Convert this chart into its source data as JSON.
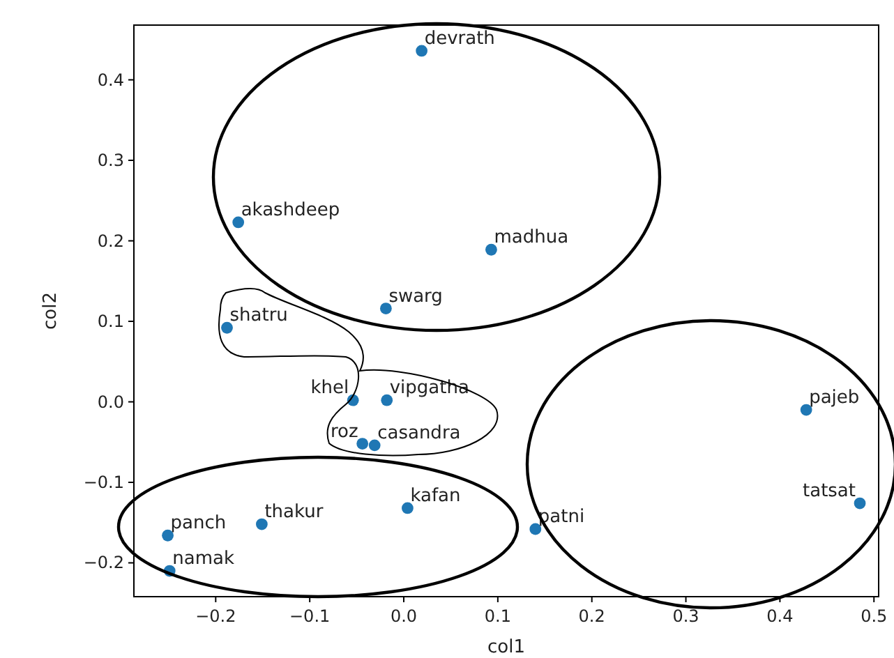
{
  "chart_data": {
    "type": "scatter",
    "xlabel": "col1",
    "ylabel": "col2",
    "xlim": [
      -0.287,
      0.505
    ],
    "ylim": [
      -0.242,
      0.468
    ],
    "xticks": [
      {
        "value": -0.2,
        "label": "−0.2"
      },
      {
        "value": -0.1,
        "label": "−0.1"
      },
      {
        "value": 0,
        "label": "0.0"
      },
      0.1,
      0.2,
      0.3,
      0.4,
      0.5
    ],
    "yticks": [
      {
        "value": -0.2,
        "label": "−0.2"
      },
      {
        "value": -0.1,
        "label": "−0.1"
      },
      {
        "value": 0,
        "label": "0.0"
      },
      0.1,
      0.2,
      0.3,
      0.4
    ],
    "marker": "circle",
    "grid": false,
    "series": [
      {
        "color": "#1f77b4",
        "x": [
          0.019,
          -0.176,
          0.093,
          -0.019,
          -0.188,
          -0.054,
          -0.018,
          -0.044,
          -0.031,
          0.428,
          0.485,
          0.004,
          0.14,
          -0.151,
          -0.251,
          -0.249
        ],
        "values": [
          0.436,
          0.223,
          0.189,
          0.116,
          0.092,
          0.002,
          0.002,
          -0.052,
          -0.054,
          -0.01,
          -0.126,
          -0.132,
          -0.158,
          -0.152,
          -0.166,
          -0.21
        ]
      }
    ],
    "annotations": [
      {
        "text": "devrath",
        "x": 0.019,
        "y": 0.436
      },
      {
        "text": "akashdeep",
        "x": -0.176,
        "y": 0.223
      },
      {
        "text": "madhua",
        "x": 0.093,
        "y": 0.189
      },
      {
        "text": "swarg",
        "x": -0.019,
        "y": 0.116
      },
      {
        "text": "shatru",
        "x": -0.188,
        "y": 0.092
      },
      {
        "text": "khel",
        "x": -0.054,
        "y": 0.002
      },
      {
        "text": "vipgatha",
        "x": -0.018,
        "y": 0.002
      },
      {
        "text": "roz",
        "x": -0.044,
        "y": -0.052
      },
      {
        "text": "casandra",
        "x": -0.031,
        "y": -0.054
      },
      {
        "text": "pajeb",
        "x": 0.428,
        "y": -0.01
      },
      {
        "text": "tatsat",
        "x": 0.485,
        "y": -0.126
      },
      {
        "text": "kafan",
        "x": 0.004,
        "y": -0.132
      },
      {
        "text": "patni",
        "x": 0.14,
        "y": -0.158
      },
      {
        "text": "thakur",
        "x": -0.151,
        "y": -0.152
      },
      {
        "text": "panch",
        "x": -0.251,
        "y": -0.166
      },
      {
        "text": "namak",
        "x": -0.249,
        "y": -0.21
      }
    ]
  }
}
